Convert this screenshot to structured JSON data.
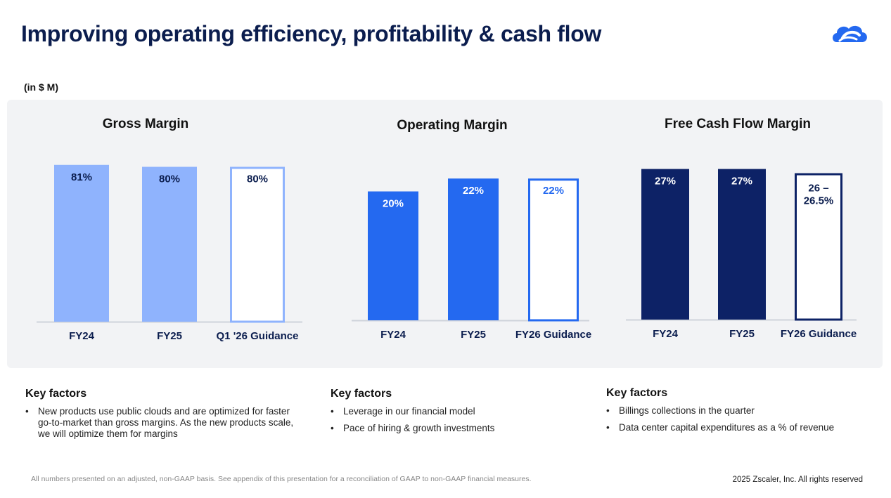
{
  "title": "Improving operating efficiency, profitability & cash flow",
  "units": "(in $ M)",
  "colors": {
    "gross": "#8fb3fd",
    "operating": "#2469f0",
    "fcf": "#0d2266",
    "title": "#0b1d4e",
    "panel": "#f2f3f5"
  },
  "chart_data": [
    {
      "type": "bar",
      "title": "Gross Margin",
      "categories": [
        "FY24",
        "FY25",
        "Q1 '26 Guidance"
      ],
      "values": [
        81,
        80,
        80
      ],
      "value_labels": [
        "81%",
        "80%",
        "80%"
      ],
      "guidance_index": 2,
      "ylim": [
        0,
        82
      ]
    },
    {
      "type": "bar",
      "title": "Operating Margin",
      "categories": [
        "FY24",
        "FY25",
        "FY26 Guidance"
      ],
      "values": [
        20,
        22,
        22
      ],
      "value_labels": [
        "20%",
        "22%",
        "22%"
      ],
      "guidance_index": 2,
      "ylim": [
        0,
        23
      ]
    },
    {
      "type": "bar",
      "title": "Free Cash Flow Margin",
      "categories": [
        "FY24",
        "FY25",
        "FY26 Guidance"
      ],
      "values": [
        27,
        27,
        26.25
      ],
      "value_labels": [
        "27%",
        "27%",
        "26 – 26.5%"
      ],
      "guidance_index": 2,
      "ylim": [
        0,
        27.2
      ]
    }
  ],
  "key_factors": [
    {
      "heading": "Key factors",
      "items": [
        "New products use public clouds and are optimized for faster go-to-market than gross margins. As the new products scale, we will optimize them for margins"
      ]
    },
    {
      "heading": "Key factors",
      "items": [
        "Leverage in our financial model",
        "Pace of hiring & growth investments"
      ]
    },
    {
      "heading": "Key factors",
      "items": [
        "Billings collections in the quarter",
        "Data center capital expenditures as a % of revenue"
      ]
    }
  ],
  "footer": {
    "note": "All numbers presented on an adjusted, non-GAAP basis. See appendix of this presentation for a reconciliation of GAAP to non-GAAP financial measures.",
    "copyright": "2025 Zscaler, Inc. All rights reserved"
  },
  "logo_icon": "zscaler-cloud-logo"
}
